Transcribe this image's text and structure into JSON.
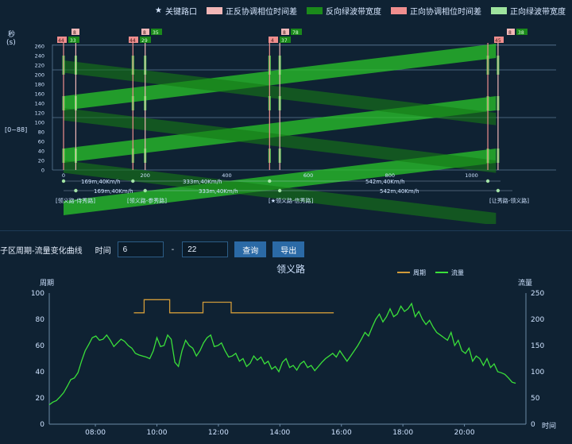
{
  "top_legend": {
    "items": [
      {
        "label": "关键路口",
        "icon": "star-icon"
      },
      {
        "label": "正反协调相位时间差",
        "color": "#f2b7b7"
      },
      {
        "label": "反向绿波带宽度",
        "color": "#1b8a1b"
      },
      {
        "label": "正向协调相位时间差",
        "color": "#f08e8e"
      },
      {
        "label": "正向绿波带宽度",
        "color": "#9ee39e"
      }
    ]
  },
  "top_chart": {
    "y_unit_top": "秒",
    "y_unit_bottom": "(s)",
    "y_ticks": [
      "0",
      "20",
      "40",
      "60",
      "80",
      "100",
      "120",
      "140",
      "160",
      "180",
      "200",
      "220",
      "240",
      "260"
    ],
    "x_ticks": [
      "0",
      "200",
      "400",
      "600",
      "800",
      "1000"
    ],
    "side_label": "[0~88]",
    "intersections": [
      {
        "name": "[领义路-侍秀路]",
        "badges": [
          "44",
          "33"
        ],
        "top_badges": [
          "8"
        ]
      },
      {
        "name": "[领义路-参秀路]",
        "badges": [
          "44",
          "29"
        ],
        "top_badges": [
          "8",
          "35"
        ]
      },
      {
        "name": "[★领义路-信秀路]",
        "badges": [
          "4",
          "37"
        ],
        "top_badges": [
          "8",
          "78"
        ]
      },
      {
        "name": "[让秀路-领义路]",
        "badges": [
          "45"
        ],
        "top_badges": [
          "8",
          "38"
        ]
      }
    ],
    "segments_row1": [
      "169m,40Km/h",
      "333m,40Km/h",
      "542m,40Km/h"
    ],
    "segments_row2": [
      "169m,40Km/h",
      "333m,40Km/h",
      "542m,40Km/h"
    ]
  },
  "toolbar": {
    "title": "子区周期-流量变化曲线",
    "time_label": "时间",
    "start_value": "6",
    "end_value": "22",
    "dash": "-",
    "query_label": "查询",
    "export_label": "导出"
  },
  "chart_data": {
    "type": "line",
    "title": "领义路",
    "ylabel_left": "周期",
    "ylabel_right": "流量",
    "xlabel": "时间",
    "x_ticks": [
      "08:00",
      "10:00",
      "12:00",
      "14:00",
      "16:00",
      "18:00",
      "20:00"
    ],
    "y_left_ticks": [
      0,
      20,
      40,
      60,
      80,
      100
    ],
    "y_right_ticks": [
      0,
      50,
      100,
      150,
      200,
      250
    ],
    "ylim_left": [
      0,
      100
    ],
    "ylim_right": [
      0,
      250
    ],
    "legend": {
      "placement": "top-right"
    },
    "series": [
      {
        "name": "周期",
        "axis": "left",
        "color": "#d09a3a",
        "points": [
          {
            "t": "09:15",
            "v": 85
          },
          {
            "t": "09:35",
            "v": 85
          },
          {
            "t": "09:35",
            "v": 95
          },
          {
            "t": "10:25",
            "v": 95
          },
          {
            "t": "10:25",
            "v": 85
          },
          {
            "t": "11:30",
            "v": 85
          },
          {
            "t": "11:30",
            "v": 93
          },
          {
            "t": "12:25",
            "v": 93
          },
          {
            "t": "12:25",
            "v": 85
          },
          {
            "t": "15:45",
            "v": 85
          }
        ]
      },
      {
        "name": "流量",
        "axis": "right",
        "color": "#3adf3a",
        "values": [
          37,
          42,
          45,
          52,
          60,
          72,
          85,
          88,
          98,
          120,
          140,
          152,
          165,
          168,
          160,
          162,
          170,
          160,
          148,
          155,
          162,
          158,
          150,
          145,
          135,
          132,
          130,
          128,
          125,
          140,
          165,
          148,
          150,
          170,
          162,
          118,
          110,
          140,
          160,
          150,
          145,
          130,
          140,
          155,
          165,
          170,
          148,
          150,
          155,
          140,
          128,
          130,
          135,
          120,
          125,
          110,
          116,
          130,
          122,
          128,
          115,
          120,
          105,
          110,
          100,
          118,
          125,
          108,
          112,
          103,
          115,
          120,
          108,
          112,
          102,
          110,
          118,
          125,
          130,
          135,
          128,
          140,
          130,
          120,
          130,
          140,
          150,
          162,
          175,
          168,
          185,
          200,
          210,
          195,
          205,
          220,
          205,
          210,
          225,
          215,
          220,
          230,
          205,
          215,
          200,
          190,
          198,
          185,
          175,
          170,
          165,
          160,
          175,
          150,
          160,
          140,
          135,
          145,
          120,
          130,
          125,
          112,
          125,
          108,
          115,
          100,
          98,
          95,
          88,
          80,
          78
        ],
        "start": "06:30",
        "end": "21:40"
      }
    ]
  }
}
